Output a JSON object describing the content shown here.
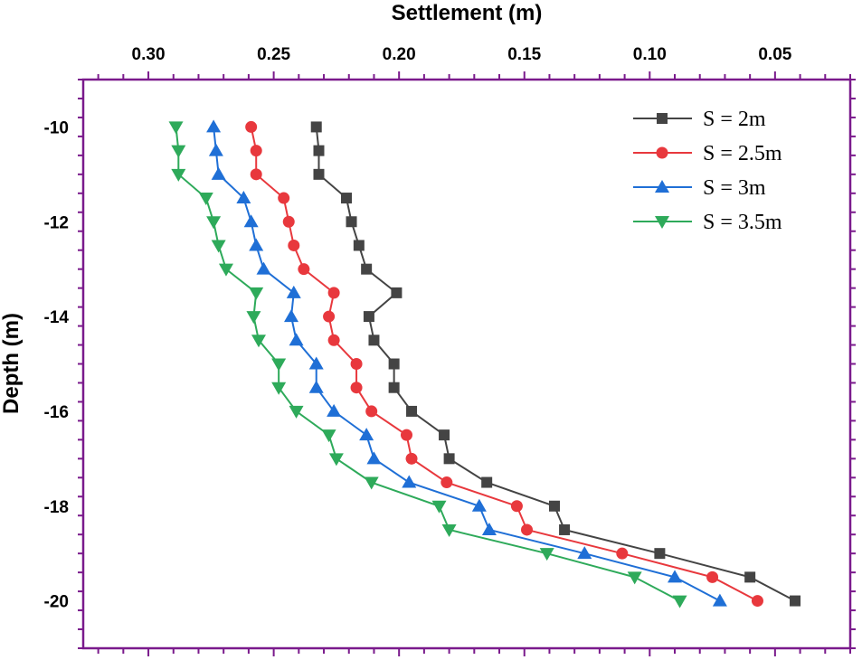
{
  "chart_data": {
    "type": "line",
    "title": "",
    "xlabel": "Settlement (m)",
    "ylabel": "Depth (m)",
    "xlim": [
      0.326,
      0.02
    ],
    "ylim": [
      -21,
      -9
    ],
    "x_reversed": true,
    "x_axis_position": "top",
    "xticks": [
      0.3,
      0.25,
      0.2,
      0.15,
      0.1,
      0.05
    ],
    "xtick_labels": [
      "0.30",
      "0.25",
      "0.20",
      "0.15",
      "0.10",
      "0.05"
    ],
    "yticks": [
      -10,
      -12,
      -14,
      -16,
      -18,
      -20
    ],
    "ytick_labels": [
      "-10",
      "-12",
      "-14",
      "-16",
      "-18",
      "-20"
    ],
    "grid": false,
    "legend_position": "top-right",
    "axis_color": "#7a1a8c",
    "depth": [
      -10,
      -10.5,
      -11,
      -11.5,
      -12,
      -12.5,
      -13,
      -13.5,
      -14,
      -14.5,
      -15,
      -15.5,
      -16,
      -16.5,
      -17,
      -17.5,
      -18,
      -18.5,
      -19,
      -19.5,
      -20
    ],
    "series": [
      {
        "name": "S = 2m",
        "color": "#444444",
        "marker": "square",
        "values": [
          0.233,
          0.232,
          0.232,
          0.221,
          0.219,
          0.216,
          0.213,
          0.201,
          0.212,
          0.21,
          0.202,
          0.202,
          0.195,
          0.182,
          0.18,
          0.165,
          0.138,
          0.134,
          0.096,
          0.06,
          0.042
        ]
      },
      {
        "name": "S = 2.5m",
        "color": "#e8383d",
        "marker": "circle",
        "values": [
          0.259,
          0.257,
          0.257,
          0.246,
          0.244,
          0.242,
          0.238,
          0.226,
          0.228,
          0.226,
          0.217,
          0.217,
          0.211,
          0.197,
          0.195,
          0.181,
          0.153,
          0.149,
          0.111,
          0.075,
          0.057
        ]
      },
      {
        "name": "S = 3m",
        "color": "#1f6fd6",
        "marker": "triangle-up",
        "values": [
          0.274,
          0.273,
          0.272,
          0.262,
          0.259,
          0.257,
          0.254,
          0.242,
          0.243,
          0.241,
          0.233,
          0.233,
          0.226,
          0.213,
          0.21,
          0.196,
          0.168,
          0.164,
          0.126,
          0.09,
          0.072
        ]
      },
      {
        "name": "S = 3.5m",
        "color": "#2eaa5a",
        "marker": "triangle-down",
        "values": [
          0.289,
          0.288,
          0.288,
          0.277,
          0.274,
          0.272,
          0.269,
          0.257,
          0.258,
          0.256,
          0.248,
          0.248,
          0.241,
          0.228,
          0.225,
          0.211,
          0.184,
          0.18,
          0.141,
          0.106,
          0.088
        ]
      }
    ]
  }
}
